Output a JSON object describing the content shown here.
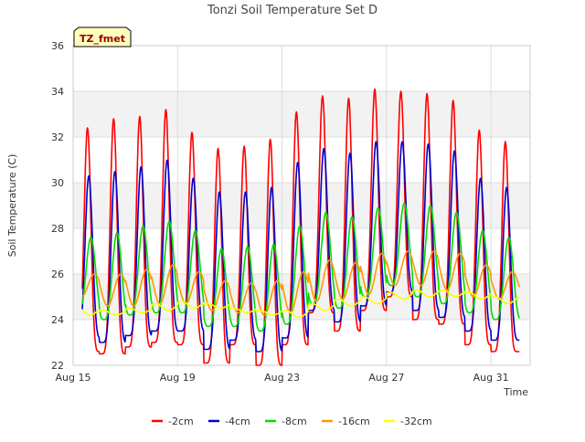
{
  "chart_data": {
    "type": "line",
    "title": "Tonzi Soil Temperature Set D",
    "xlabel": "Time",
    "ylabel": "Soil Temperature (C)",
    "annotation": "TZ_fmet",
    "xlim": [
      0,
      17.5
    ],
    "ylim": [
      22,
      36
    ],
    "x_ticks": [
      {
        "x": 0,
        "label": "Aug 15"
      },
      {
        "x": 4,
        "label": "Aug 19"
      },
      {
        "x": 8,
        "label": "Aug 23"
      },
      {
        "x": 12,
        "label": "Aug 27"
      },
      {
        "x": 16,
        "label": "Aug 31"
      }
    ],
    "y_ticks": [
      22,
      24,
      26,
      28,
      30,
      32,
      34,
      36
    ],
    "shaded_bands": [
      [
        24,
        26
      ],
      [
        28,
        30
      ],
      [
        32,
        34
      ]
    ],
    "grid": true,
    "legend_position": "bottom",
    "start_x": 0.35,
    "end_x": 17.1,
    "series": [
      {
        "name": "-2cm",
        "color": "#ff0000",
        "phase": 0.55,
        "sharp": 3.0,
        "max": [
          32.4,
          32.8,
          32.9,
          33.2,
          32.2,
          31.5,
          31.6,
          31.9,
          33.1,
          33.8,
          33.7,
          34.1,
          34.0,
          33.9,
          33.6,
          32.3,
          31.8
        ],
        "min": [
          22.6,
          22.5,
          22.8,
          23.0,
          22.9,
          22.1,
          22.9,
          22.0,
          22.9,
          24.3,
          23.5,
          24.4,
          25.0,
          24.0,
          23.8,
          22.9,
          22.6
        ]
      },
      {
        "name": "-4cm",
        "color": "#0000cc",
        "phase": 0.6,
        "sharp": 2.5,
        "max": [
          30.3,
          30.5,
          30.7,
          31.0,
          30.2,
          29.6,
          29.6,
          29.8,
          30.9,
          31.5,
          31.3,
          31.8,
          31.8,
          31.7,
          31.4,
          30.2,
          29.8
        ],
        "min": [
          23.2,
          23.0,
          23.3,
          23.5,
          23.5,
          22.7,
          23.1,
          22.6,
          23.2,
          24.4,
          23.9,
          24.6,
          25.2,
          24.4,
          24.1,
          23.5,
          23.1
        ]
      },
      {
        "name": "-8cm",
        "color": "#00dd00",
        "phase": 0.68,
        "sharp": 1.6,
        "max": [
          27.6,
          27.8,
          28.1,
          28.3,
          27.9,
          27.1,
          27.2,
          27.3,
          28.1,
          28.7,
          28.5,
          28.9,
          29.1,
          29.0,
          28.7,
          27.9,
          27.6
        ],
        "min": [
          24.3,
          24.0,
          24.2,
          24.3,
          24.3,
          23.7,
          23.7,
          23.5,
          23.8,
          24.7,
          24.5,
          25.0,
          25.5,
          25.0,
          24.7,
          24.3,
          24.0
        ]
      },
      {
        "name": "-16cm",
        "color": "#ff9900",
        "phase": 0.82,
        "sharp": 1.0,
        "max": [
          26.0,
          26.0,
          26.2,
          26.4,
          26.1,
          25.7,
          25.6,
          25.7,
          26.1,
          26.6,
          26.5,
          26.9,
          27.0,
          27.0,
          26.9,
          26.4,
          26.1
        ],
        "min": [
          25.0,
          24.6,
          24.6,
          24.7,
          24.7,
          24.4,
          24.3,
          24.2,
          24.3,
          24.8,
          24.9,
          25.1,
          25.5,
          25.5,
          25.3,
          25.0,
          24.9
        ]
      },
      {
        "name": "-32cm",
        "color": "#ffff00",
        "phase": 0.15,
        "sharp": 1.0,
        "max": [
          24.5,
          24.4,
          24.5,
          24.7,
          24.8,
          24.7,
          24.5,
          24.4,
          24.4,
          24.7,
          24.9,
          25.0,
          25.2,
          25.3,
          25.3,
          25.2,
          25.0
        ],
        "min": [
          24.2,
          24.2,
          24.3,
          24.4,
          24.5,
          24.5,
          24.3,
          24.2,
          24.1,
          24.4,
          24.6,
          24.7,
          24.9,
          25.0,
          25.0,
          24.9,
          24.7
        ]
      }
    ]
  }
}
